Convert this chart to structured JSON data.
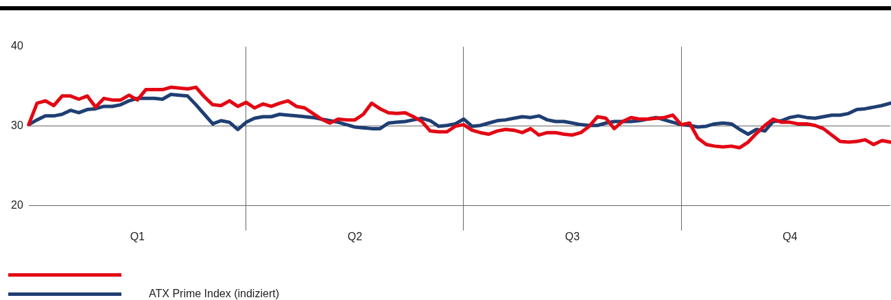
{
  "chart_data": {
    "type": "line",
    "categories": [
      null,
      null,
      null,
      null,
      null,
      null,
      null,
      null,
      null,
      null,
      null,
      null,
      null,
      "Q1",
      null,
      null,
      null,
      null,
      null,
      null,
      null,
      null,
      null,
      null,
      null,
      null,
      null,
      null,
      null,
      null,
      null,
      null,
      null,
      null,
      null,
      null,
      null,
      null,
      null,
      "Q2",
      null,
      null,
      null,
      null,
      null,
      null,
      null,
      null,
      null,
      null,
      null,
      null,
      null,
      null,
      null,
      null,
      null,
      null,
      null,
      null,
      null,
      null,
      null,
      null,
      null,
      "Q3",
      null,
      null,
      null,
      null,
      null,
      null,
      null,
      null,
      null,
      null,
      null,
      null,
      null,
      null,
      null,
      null,
      null,
      null,
      null,
      null,
      null,
      null,
      null,
      null,
      null,
      "Q4",
      null,
      null,
      null,
      null,
      null,
      null,
      null,
      null,
      null,
      null,
      null,
      null
    ],
    "series": [
      {
        "color": "#e30613",
        "values": [
          30.2,
          32.9,
          33.2,
          32.6,
          33.8,
          33.8,
          33.4,
          33.8,
          32.4,
          33.5,
          33.3,
          33.3,
          33.9,
          33.3,
          34.6,
          34.6,
          34.6,
          34.9,
          34.8,
          34.7,
          34.9,
          33.7,
          32.7,
          32.6,
          33.2,
          32.5,
          33.0,
          32.3,
          32.8,
          32.5,
          32.9,
          33.2,
          32.5,
          32.3,
          31.6,
          30.9,
          30.4,
          30.9,
          30.8,
          30.8,
          31.5,
          32.9,
          32.2,
          31.7,
          31.6,
          31.7,
          31.2,
          30.6,
          29.4,
          29.3,
          29.3,
          30.0,
          30.2,
          29.5,
          29.2,
          29.0,
          29.4,
          29.6,
          29.5,
          29.2,
          29.7,
          28.9,
          29.2,
          29.2,
          29.0,
          28.9,
          29.2,
          30.0,
          31.2,
          31.0,
          29.7,
          30.6,
          31.1,
          30.9,
          30.9,
          31.0,
          31.1,
          31.4,
          30.2,
          30.4,
          28.5,
          27.7,
          27.5,
          27.4,
          27.5,
          27.3,
          28.0,
          29.1,
          30.1,
          30.9,
          30.5,
          30.5,
          30.3,
          30.3,
          30.1,
          29.7,
          28.9,
          28.1,
          28.0,
          28.1,
          28.3,
          27.7,
          28.2,
          28.0
        ]
      },
      {
        "name": "ATX Prime Index (indiziert)",
        "color": "#1f3f73",
        "values": [
          30.2,
          30.8,
          31.3,
          31.3,
          31.5,
          32.0,
          31.7,
          32.1,
          32.2,
          32.5,
          32.5,
          32.7,
          33.2,
          33.5,
          33.5,
          33.5,
          33.4,
          34.0,
          33.9,
          33.8,
          32.7,
          31.5,
          30.3,
          30.7,
          30.5,
          29.6,
          30.5,
          31.0,
          31.2,
          31.2,
          31.5,
          31.4,
          31.3,
          31.2,
          31.1,
          30.9,
          30.7,
          30.5,
          30.2,
          29.9,
          29.8,
          29.7,
          29.7,
          30.4,
          30.5,
          30.6,
          30.8,
          31.0,
          30.7,
          30.0,
          30.1,
          30.3,
          30.9,
          30.0,
          30.1,
          30.4,
          30.7,
          30.8,
          31.0,
          31.2,
          31.1,
          31.3,
          30.8,
          30.6,
          30.6,
          30.4,
          30.2,
          30.1,
          30.1,
          30.4,
          30.6,
          30.6,
          30.6,
          30.7,
          30.9,
          31.1,
          30.8,
          30.5,
          30.2,
          30.1,
          29.9,
          30.0,
          30.3,
          30.4,
          30.3,
          29.6,
          29.0,
          29.6,
          29.4,
          30.6,
          30.7,
          31.1,
          31.3,
          31.1,
          31.0,
          31.2,
          31.4,
          31.4,
          31.6,
          32.1,
          32.2,
          32.4,
          32.6,
          32.9
        ]
      }
    ],
    "ylim": [
      20,
      40
    ],
    "yticks": [
      20,
      30,
      40
    ],
    "grid": true,
    "legend": "bottom left",
    "marker": "none",
    "line_style": "solid"
  }
}
